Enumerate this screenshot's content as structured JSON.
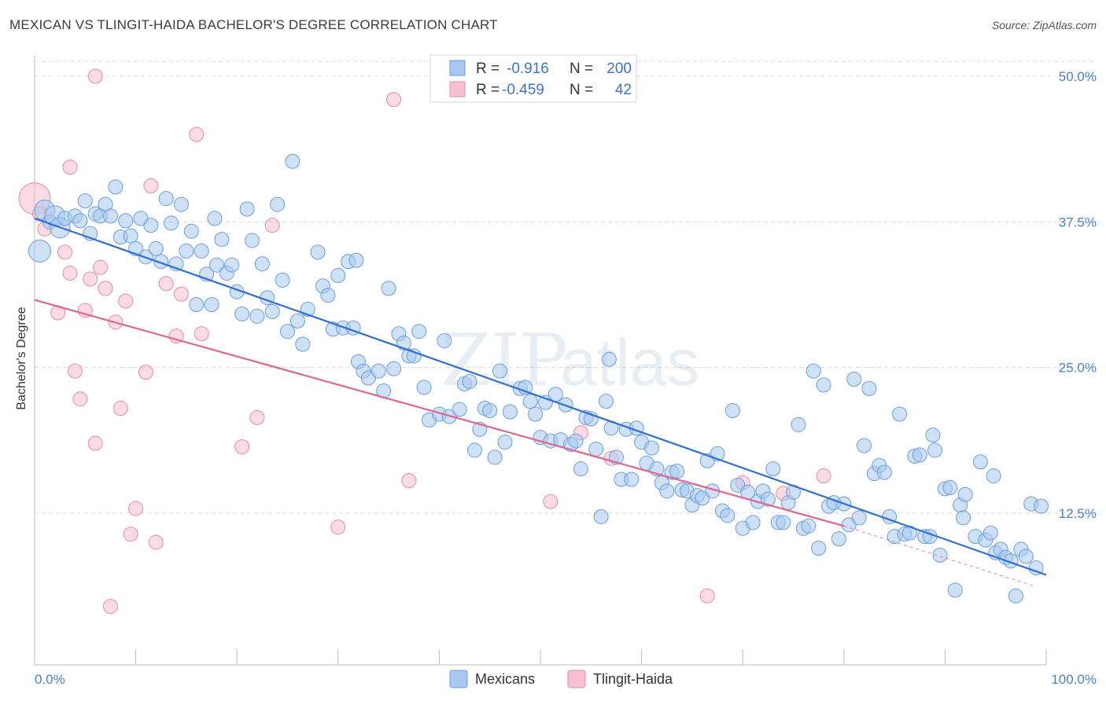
{
  "header": {
    "title": "MEXICAN VS TLINGIT-HAIDA BACHELOR'S DEGREE CORRELATION CHART",
    "source": "Source: ZipAtlas.com"
  },
  "watermark": {
    "zip": "ZIP",
    "atlas": "atlas"
  },
  "legend": {
    "items": [
      {
        "r_label": "R =",
        "r_value": "-0.916",
        "n_label": "N =",
        "n_value": "200"
      },
      {
        "r_label": "R =",
        "r_value": "-0.459",
        "n_label": "N =",
        "n_value": "42"
      }
    ]
  },
  "colors": {
    "blue_fill": "#a8c8f0",
    "blue_stroke": "#6a9ee0",
    "blue_line": "#2f6fd6",
    "pink_fill": "#f7c0d0",
    "pink_stroke": "#e98aa6",
    "pink_line": "#e06690",
    "tick_text": "#4a7fd0"
  },
  "chart_data": {
    "type": "scatter",
    "title": "MEXICAN VS TLINGIT-HAIDA BACHELOR'S DEGREE CORRELATION CHART",
    "xlabel": "",
    "ylabel": "Bachelor's Degree",
    "xlim": [
      0,
      100
    ],
    "ylim": [
      0,
      51
    ],
    "y_ticks": [
      12.5,
      25.0,
      37.5,
      50.0
    ],
    "y_tick_labels": [
      "12.5%",
      "25.0%",
      "37.5%",
      "50.0%"
    ],
    "x_tick_labels": [
      "0.0%",
      "100.0%"
    ],
    "grid": true,
    "legend_position": "top-center",
    "series": [
      {
        "name": "Mexicans",
        "r": -0.916,
        "n": 200,
        "trend": {
          "x": [
            0,
            100
          ],
          "y": [
            37.8,
            7.2
          ]
        },
        "points": [
          [
            0.5,
            35
          ],
          [
            1,
            38.5
          ],
          [
            1.5,
            37.5
          ],
          [
            2,
            38
          ],
          [
            2.5,
            37
          ],
          [
            3,
            37.8
          ],
          [
            4,
            38
          ],
          [
            4.5,
            37.6
          ],
          [
            5,
            39.3
          ],
          [
            5.5,
            36.5
          ],
          [
            6,
            38.2
          ],
          [
            6.5,
            38
          ],
          [
            7,
            39
          ],
          [
            7.5,
            38
          ],
          [
            8,
            40.5
          ],
          [
            8.5,
            36.2
          ],
          [
            9,
            37.6
          ],
          [
            9.5,
            36.3
          ],
          [
            10,
            35.2
          ],
          [
            10.5,
            37.8
          ],
          [
            11,
            34.5
          ],
          [
            11.5,
            37.2
          ],
          [
            12,
            35.2
          ],
          [
            12.5,
            34.1
          ],
          [
            13,
            39.5
          ],
          [
            13.5,
            37.4
          ],
          [
            14,
            33.9
          ],
          [
            14.5,
            39
          ],
          [
            15,
            35
          ],
          [
            15.5,
            36.7
          ],
          [
            16,
            30.4
          ],
          [
            16.5,
            35
          ],
          [
            17,
            33
          ],
          [
            17.5,
            30.4
          ],
          [
            17.8,
            37.8
          ],
          [
            18,
            33.8
          ],
          [
            18.5,
            36
          ],
          [
            19,
            33.1
          ],
          [
            19.5,
            33.8
          ],
          [
            20,
            31.5
          ],
          [
            20.5,
            29.6
          ],
          [
            21,
            38.6
          ],
          [
            21.5,
            35.9
          ],
          [
            22,
            29.4
          ],
          [
            22.5,
            33.9
          ],
          [
            23,
            31
          ],
          [
            23.5,
            29.8
          ],
          [
            24,
            39
          ],
          [
            24.5,
            32.5
          ],
          [
            25,
            28.1
          ],
          [
            25.5,
            42.7
          ],
          [
            26,
            29
          ],
          [
            26.5,
            27
          ],
          [
            27,
            30
          ],
          [
            28,
            34.9
          ],
          [
            28.5,
            32
          ],
          [
            29,
            31.2
          ],
          [
            29.5,
            28.3
          ],
          [
            30,
            32.9
          ],
          [
            30.5,
            28.4
          ],
          [
            31,
            34.1
          ],
          [
            31.5,
            28.4
          ],
          [
            31.8,
            34.2
          ],
          [
            32,
            25.5
          ],
          [
            32.5,
            24.7
          ],
          [
            33,
            24.1
          ],
          [
            34,
            24.7
          ],
          [
            34.5,
            23
          ],
          [
            35,
            31.8
          ],
          [
            35.5,
            24.9
          ],
          [
            36,
            27.9
          ],
          [
            36.5,
            27.1
          ],
          [
            37,
            26
          ],
          [
            37.5,
            26
          ],
          [
            38,
            28.1
          ],
          [
            38.5,
            23.3
          ],
          [
            39,
            20.5
          ],
          [
            40,
            21
          ],
          [
            40.5,
            27.3
          ],
          [
            41,
            20.8
          ],
          [
            42,
            21.4
          ],
          [
            42.5,
            23.6
          ],
          [
            43,
            23.8
          ],
          [
            43.5,
            17.9
          ],
          [
            44,
            19.7
          ],
          [
            44.5,
            21.5
          ],
          [
            45,
            21.3
          ],
          [
            45.5,
            17.3
          ],
          [
            46,
            24.7
          ],
          [
            46.5,
            18.6
          ],
          [
            47,
            21.2
          ],
          [
            48,
            23.2
          ],
          [
            48.5,
            23.3
          ],
          [
            49,
            22.1
          ],
          [
            49.5,
            21
          ],
          [
            50,
            19
          ],
          [
            50.5,
            22
          ],
          [
            51,
            18.7
          ],
          [
            51.5,
            22.7
          ],
          [
            52,
            18.8
          ],
          [
            52.5,
            21.8
          ],
          [
            53,
            18.4
          ],
          [
            53.5,
            18.7
          ],
          [
            54,
            16.3
          ],
          [
            54.5,
            20.7
          ],
          [
            55,
            20.6
          ],
          [
            55.5,
            18
          ],
          [
            56,
            12.2
          ],
          [
            56.5,
            22.1
          ],
          [
            56.8,
            25.7
          ],
          [
            57,
            19.8
          ],
          [
            57.5,
            17.3
          ],
          [
            58,
            15.4
          ],
          [
            58.5,
            19.7
          ],
          [
            59,
            15.4
          ],
          [
            59.5,
            19.8
          ],
          [
            60,
            18.6
          ],
          [
            60.5,
            16.8
          ],
          [
            61,
            18.1
          ],
          [
            61.5,
            16.3
          ],
          [
            62,
            15.1
          ],
          [
            62.5,
            14.4
          ],
          [
            63,
            16
          ],
          [
            63.5,
            16.1
          ],
          [
            64,
            14.5
          ],
          [
            64.5,
            14.4
          ],
          [
            65,
            13.2
          ],
          [
            65.5,
            14
          ],
          [
            66,
            13.8
          ],
          [
            66.5,
            17
          ],
          [
            67,
            14.4
          ],
          [
            67.5,
            17.6
          ],
          [
            68,
            12.7
          ],
          [
            68.5,
            12.3
          ],
          [
            69,
            21.3
          ],
          [
            69.5,
            14.9
          ],
          [
            70,
            11.2
          ],
          [
            70.5,
            14.3
          ],
          [
            71,
            11.7
          ],
          [
            71.5,
            13.5
          ],
          [
            72,
            14.4
          ],
          [
            72.5,
            13.7
          ],
          [
            73,
            16.3
          ],
          [
            73.5,
            11.7
          ],
          [
            74,
            11.7
          ],
          [
            74.5,
            13.4
          ],
          [
            75,
            14.3
          ],
          [
            75.5,
            20.1
          ],
          [
            76,
            11.2
          ],
          [
            76.5,
            11.4
          ],
          [
            77,
            24.7
          ],
          [
            77.5,
            9.5
          ],
          [
            78,
            23.5
          ],
          [
            78.5,
            13.1
          ],
          [
            79,
            13.4
          ],
          [
            79.5,
            10.3
          ],
          [
            80,
            13.3
          ],
          [
            80.5,
            11.5
          ],
          [
            81,
            24
          ],
          [
            81.5,
            12.1
          ],
          [
            82,
            18.3
          ],
          [
            82.5,
            23.2
          ],
          [
            83,
            15.9
          ],
          [
            83.5,
            16.6
          ],
          [
            84,
            16
          ],
          [
            84.5,
            12.2
          ],
          [
            85,
            10.5
          ],
          [
            85.5,
            21
          ],
          [
            86,
            10.7
          ],
          [
            86.5,
            10.8
          ],
          [
            87,
            17.4
          ],
          [
            87.5,
            17.5
          ],
          [
            88,
            10.5
          ],
          [
            88.5,
            10.5
          ],
          [
            88.8,
            19.2
          ],
          [
            89,
            17.9
          ],
          [
            89.5,
            8.9
          ],
          [
            90,
            14.6
          ],
          [
            90.5,
            14.7
          ],
          [
            91,
            5.9
          ],
          [
            91.5,
            13.2
          ],
          [
            91.8,
            12.1
          ],
          [
            92,
            14.1
          ],
          [
            93,
            10.5
          ],
          [
            93.5,
            16.9
          ],
          [
            94,
            10.2
          ],
          [
            94.5,
            10.8
          ],
          [
            94.8,
            15.7
          ],
          [
            95,
            9.1
          ],
          [
            95.5,
            9.4
          ],
          [
            96,
            8.7
          ],
          [
            96.5,
            8.4
          ],
          [
            97,
            5.4
          ],
          [
            97.5,
            9.4
          ],
          [
            98,
            8.8
          ],
          [
            98.5,
            13.3
          ],
          [
            99,
            7.8
          ],
          [
            99.5,
            13.1
          ]
        ]
      },
      {
        "name": "Tlingit-Haida",
        "r": -0.459,
        "n": 42,
        "trend": {
          "x": [
            0,
            80
          ],
          "y": [
            30.8,
            11.4
          ]
        },
        "trend_dashed": {
          "x": [
            80,
            99
          ],
          "y": [
            11.4,
            6.2
          ]
        },
        "points": [
          [
            0,
            39.5
          ],
          [
            0.5,
            38.2
          ],
          [
            1,
            36.9
          ],
          [
            2.3,
            29.7
          ],
          [
            3,
            34.9
          ],
          [
            3.5,
            42.2
          ],
          [
            3.5,
            33.1
          ],
          [
            4,
            24.7
          ],
          [
            4.5,
            22.3
          ],
          [
            5,
            29.9
          ],
          [
            5.5,
            32.6
          ],
          [
            6,
            18.5
          ],
          [
            6.5,
            33.6
          ],
          [
            7,
            31.8
          ],
          [
            7.5,
            4.5
          ],
          [
            8,
            28.9
          ],
          [
            8.5,
            21.5
          ],
          [
            9,
            30.7
          ],
          [
            9.5,
            10.7
          ],
          [
            10,
            12.9
          ],
          [
            11,
            24.6
          ],
          [
            11.5,
            40.6
          ],
          [
            12,
            10
          ],
          [
            13,
            32.2
          ],
          [
            14,
            27.7
          ],
          [
            14.5,
            31.3
          ],
          [
            16,
            45
          ],
          [
            16.5,
            27.9
          ],
          [
            20.5,
            18.2
          ],
          [
            22,
            20.7
          ],
          [
            23.5,
            37.2
          ],
          [
            30,
            11.3
          ],
          [
            35.5,
            48
          ],
          [
            37,
            15.3
          ],
          [
            51,
            13.5
          ],
          [
            54,
            19.4
          ],
          [
            57,
            17.2
          ],
          [
            66.5,
            5.4
          ],
          [
            70,
            15.1
          ],
          [
            74,
            14.2
          ],
          [
            78,
            15.7
          ],
          [
            6,
            50
          ]
        ]
      }
    ]
  },
  "bottom_legend": {
    "items": [
      {
        "label": "Mexicans"
      },
      {
        "label": "Tlingit-Haida"
      }
    ]
  }
}
